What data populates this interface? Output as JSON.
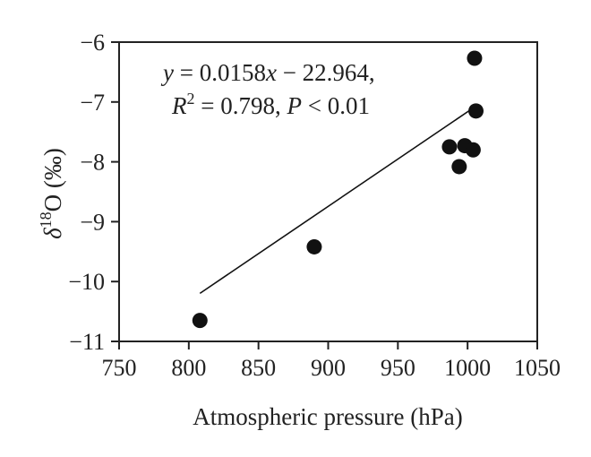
{
  "chart_data": {
    "type": "scatter",
    "xlabel": "Atmospheric pressure (hPa)",
    "ylabel": {
      "prefix": "δ",
      "superscript": "18",
      "suffix": "O (‰)"
    },
    "xlim": [
      750,
      1050
    ],
    "ylim": [
      -11,
      -6
    ],
    "xticks": [
      750,
      800,
      850,
      900,
      950,
      1000,
      1050
    ],
    "yticks": [
      -6,
      -7,
      -8,
      -9,
      -10,
      -11
    ],
    "xtick_labels": [
      "750",
      "800",
      "850",
      "900",
      "950",
      "1000",
      "1050"
    ],
    "ytick_labels": [
      "−6",
      "−7",
      "−8",
      "−9",
      "−10",
      "−11"
    ],
    "grid": false,
    "points": [
      {
        "x": 808,
        "y": -10.65
      },
      {
        "x": 890,
        "y": -9.42
      },
      {
        "x": 987,
        "y": -7.75
      },
      {
        "x": 994,
        "y": -8.08
      },
      {
        "x": 998,
        "y": -7.73
      },
      {
        "x": 1004,
        "y": -7.8
      },
      {
        "x": 1005,
        "y": -6.27
      },
      {
        "x": 1006,
        "y": -7.15
      }
    ],
    "fit": {
      "slope": 0.0158,
      "intercept": -22.964,
      "x_range": [
        808,
        1006
      ],
      "equation": {
        "y": "y",
        "equals_coef": " = 0.0158",
        "x": "x",
        "minus_const": " − 22.964,",
        "r": "R",
        "r_exp": "2",
        "r_value": " = 0.798, ",
        "p": "P",
        "p_value": " < 0.01"
      }
    },
    "colors": {
      "marker": "#111111",
      "line": "#111111",
      "axis": "#222222"
    }
  }
}
